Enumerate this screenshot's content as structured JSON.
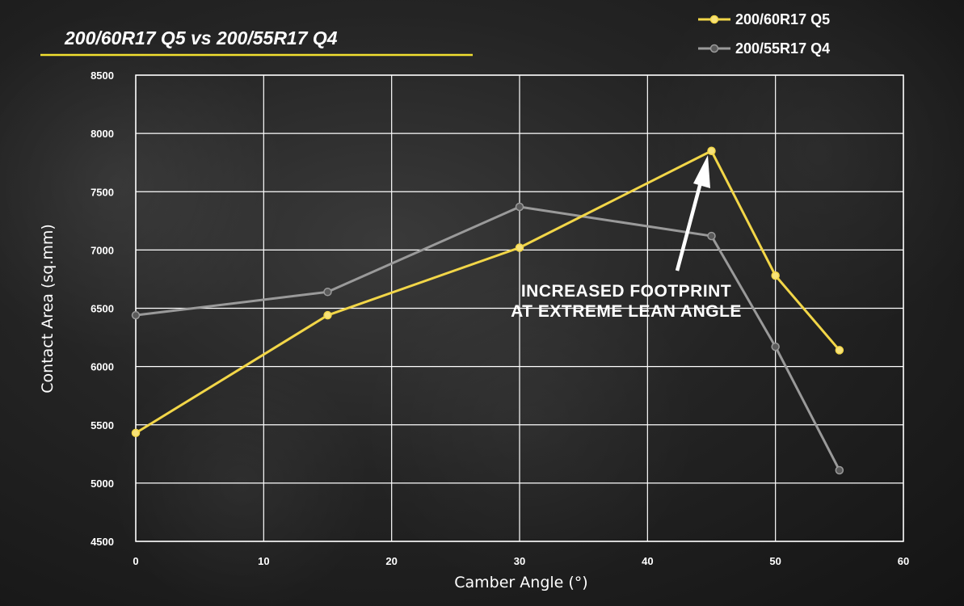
{
  "chart_data": {
    "type": "line",
    "title": "200/60R17 Q5 vs 200/55R17 Q4",
    "xlabel": "Camber Angle (°)",
    "ylabel": "Contact Area (sq.mm)",
    "xlim": [
      0,
      60
    ],
    "ylim": [
      4500,
      8500
    ],
    "x_ticks": [
      "0",
      "10",
      "20",
      "30",
      "40",
      "50",
      "60"
    ],
    "y_ticks": [
      "4500",
      "5000",
      "5500",
      "6000",
      "6500",
      "7000",
      "7500",
      "8000",
      "8500"
    ],
    "grid": true,
    "legend_position": "top-right",
    "series": [
      {
        "name": "200/60R17 Q5",
        "color": "#f2d648",
        "x": [
          0,
          15,
          30,
          45,
          50,
          55
        ],
        "y": [
          5430,
          6440,
          7020,
          7850,
          6780,
          6140
        ]
      },
      {
        "name": "200/55R17 Q4",
        "color": "#9a9a9a",
        "x": [
          0,
          15,
          30,
          45,
          50,
          55
        ],
        "y": [
          6440,
          6640,
          7370,
          7120,
          6170,
          5110
        ]
      }
    ],
    "annotation": {
      "lines": [
        "INCREASED FOOTPRINT",
        "AT EXTREME LEAN ANGLE"
      ],
      "arrow_target": {
        "x": 45,
        "y": 7850
      }
    },
    "colors": {
      "title_underline": "#f2e030",
      "grid": "#ffffff"
    }
  }
}
